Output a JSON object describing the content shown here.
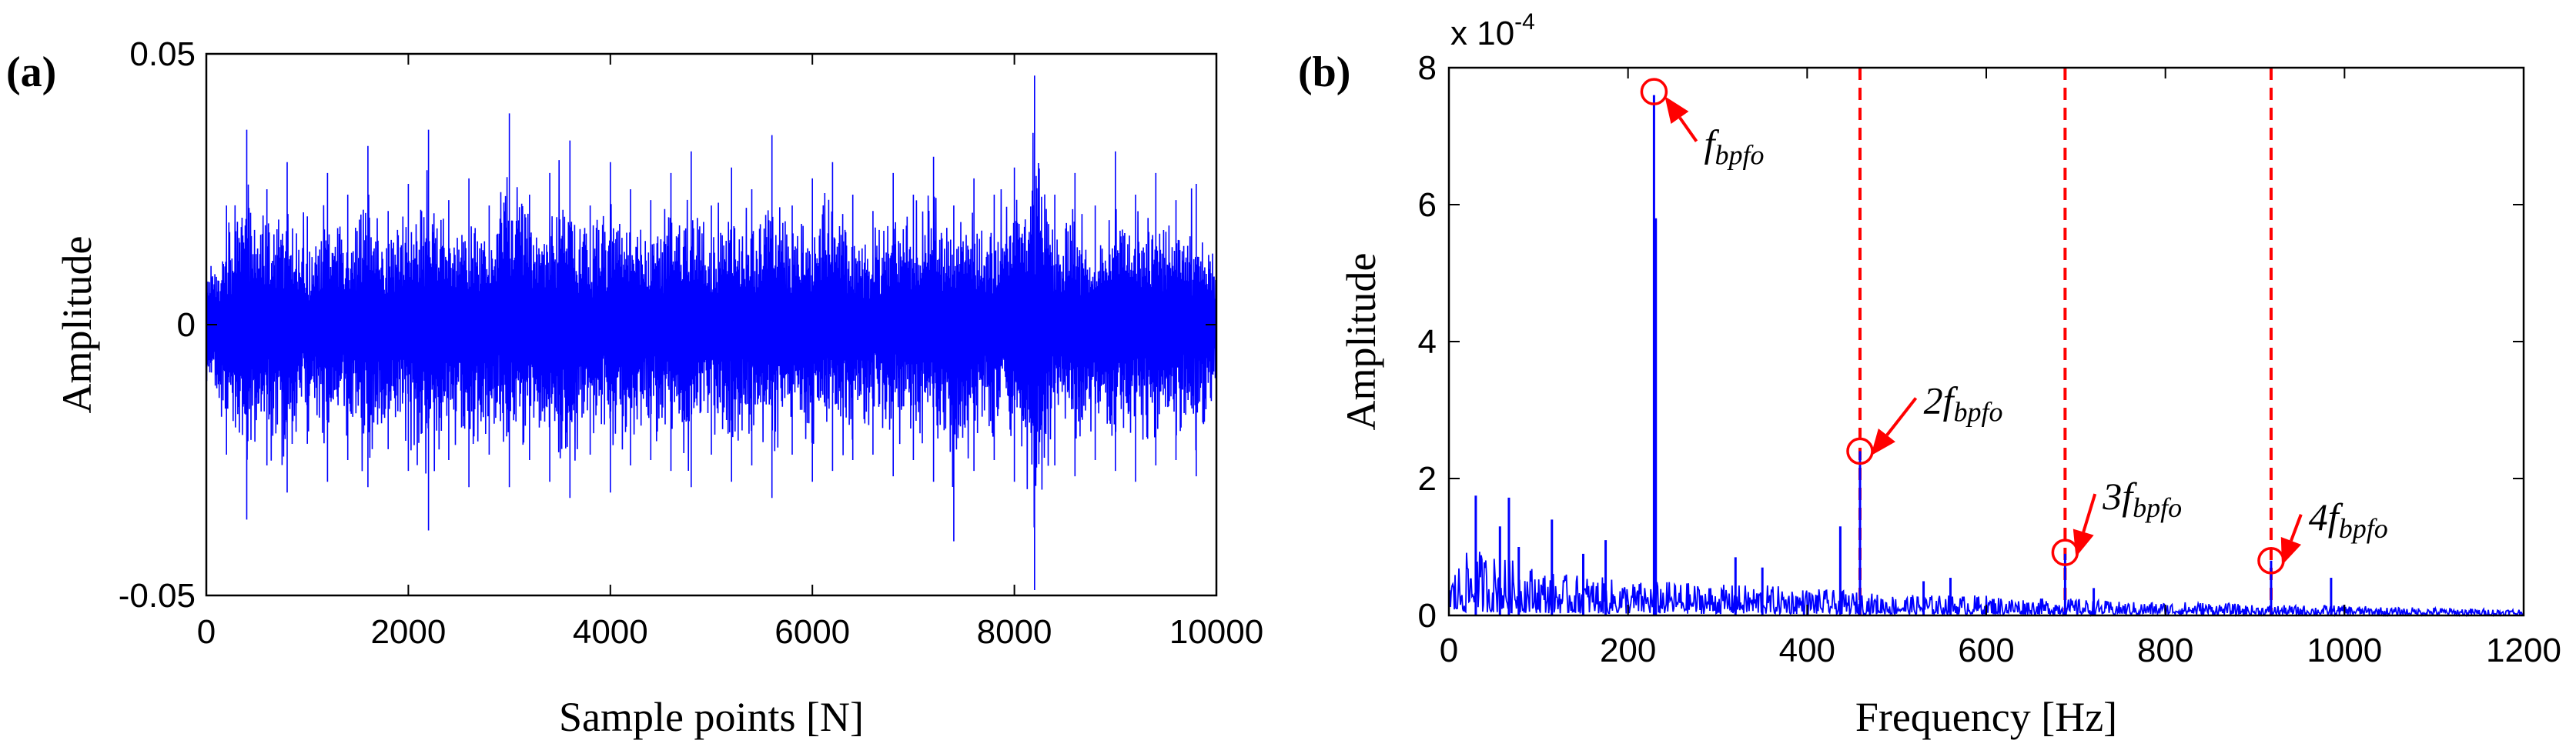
{
  "chart_data": [
    {
      "panel": "(a)",
      "type": "line",
      "xlabel": "Sample points [N]",
      "ylabel": "Amplitude",
      "xlim": [
        0,
        10000
      ],
      "ylim": [
        -0.05,
        0.05
      ],
      "xticks": [
        0,
        2000,
        4000,
        6000,
        8000,
        10000
      ],
      "yticks": [
        -0.05,
        0,
        0.05
      ],
      "ytick_labels": [
        "-0.05",
        "0",
        "0.05"
      ],
      "grid": false,
      "color": "#0000ff",
      "series": [
        {
          "x": [
            0,
            200,
            400,
            600,
            800,
            1000,
            1200,
            1400,
            1600,
            1800,
            2000,
            2200,
            2400,
            2600,
            2800,
            3000,
            3200,
            3400,
            3600,
            3800,
            4000,
            4200,
            4400,
            4600,
            4800,
            5000,
            5200,
            5400,
            5600,
            5800,
            6000,
            6200,
            6400,
            6600,
            6800,
            7000,
            7200,
            7400,
            7600,
            7800,
            8000,
            8200,
            8400,
            8600,
            8800,
            9000,
            9200,
            9400,
            9600,
            9800,
            10000
          ],
          "upper": [
            0.013,
            0.022,
            0.036,
            0.025,
            0.03,
            0.02,
            0.028,
            0.024,
            0.033,
            0.021,
            0.026,
            0.036,
            0.023,
            0.027,
            0.022,
            0.039,
            0.024,
            0.028,
            0.034,
            0.022,
            0.03,
            0.025,
            0.023,
            0.028,
            0.032,
            0.022,
            0.029,
            0.025,
            0.035,
            0.022,
            0.027,
            0.03,
            0.024,
            0.021,
            0.028,
            0.024,
            0.031,
            0.022,
            0.027,
            0.024,
            0.029,
            0.046,
            0.024,
            0.028,
            0.022,
            0.032,
            0.024,
            0.028,
            0.023,
            0.026,
            0.015
          ],
          "lower": [
            -0.015,
            -0.024,
            -0.036,
            -0.026,
            -0.031,
            -0.022,
            -0.029,
            -0.025,
            -0.03,
            -0.023,
            -0.027,
            -0.038,
            -0.025,
            -0.03,
            -0.024,
            -0.03,
            -0.025,
            -0.029,
            -0.032,
            -0.024,
            -0.031,
            -0.026,
            -0.025,
            -0.027,
            -0.03,
            -0.024,
            -0.029,
            -0.026,
            -0.032,
            -0.024,
            -0.029,
            -0.027,
            -0.025,
            -0.024,
            -0.028,
            -0.025,
            -0.029,
            -0.04,
            -0.027,
            -0.025,
            -0.029,
            -0.049,
            -0.026,
            -0.028,
            -0.025,
            -0.027,
            -0.029,
            -0.026,
            -0.025,
            -0.028,
            -0.016
          ]
        }
      ]
    },
    {
      "panel": "(b)",
      "type": "line",
      "xlabel": "Frequency [Hz]",
      "ylabel": "Amplitude",
      "exponent_label": "x 10",
      "exponent_power": "-4",
      "xlim": [
        0,
        1200
      ],
      "ylim": [
        0,
        8
      ],
      "xticks": [
        0,
        200,
        400,
        600,
        800,
        1000,
        1200
      ],
      "yticks": [
        0,
        2,
        4,
        6,
        8
      ],
      "grid": false,
      "color": "#0000ff",
      "spectrum_floor": {
        "x": [
          0,
          25,
          50,
          75,
          100,
          125,
          150,
          175,
          200,
          250,
          300,
          350,
          400,
          450,
          500,
          550,
          600,
          650,
          700,
          750,
          800,
          850,
          900,
          950,
          1000,
          1050,
          1100,
          1150,
          1200
        ],
        "envelope": [
          0.6,
          1.0,
          0.9,
          0.8,
          0.7,
          0.6,
          0.6,
          0.55,
          0.5,
          0.5,
          0.45,
          0.45,
          0.4,
          0.35,
          0.3,
          0.3,
          0.3,
          0.25,
          0.25,
          0.2,
          0.2,
          0.2,
          0.15,
          0.15,
          0.15,
          0.12,
          0.12,
          0.1,
          0.1
        ]
      },
      "peaks": [
        {
          "x": 30,
          "y": 1.75
        },
        {
          "x": 57,
          "y": 1.3
        },
        {
          "x": 67,
          "y": 1.72
        },
        {
          "x": 78,
          "y": 1.0
        },
        {
          "x": 115,
          "y": 1.4
        },
        {
          "x": 150,
          "y": 0.9
        },
        {
          "x": 175,
          "y": 1.1
        },
        {
          "x": 229,
          "y": 7.6
        },
        {
          "x": 231,
          "y": 5.8
        },
        {
          "x": 320,
          "y": 0.85
        },
        {
          "x": 350,
          "y": 0.7
        },
        {
          "x": 437,
          "y": 1.3
        },
        {
          "x": 459,
          "y": 2.4
        },
        {
          "x": 530,
          "y": 0.5
        },
        {
          "x": 560,
          "y": 0.55
        },
        {
          "x": 688,
          "y": 0.9
        },
        {
          "x": 720,
          "y": 0.4
        },
        {
          "x": 918,
          "y": 0.8
        },
        {
          "x": 985,
          "y": 0.55
        }
      ],
      "reference_lines": {
        "color": "#ff0000",
        "style": "dashed",
        "x": [
          459,
          688,
          918
        ]
      },
      "markers": [
        {
          "x": 229,
          "y": 7.65
        },
        {
          "x": 459,
          "y": 2.4
        },
        {
          "x": 688,
          "y": 0.92
        },
        {
          "x": 918,
          "y": 0.8
        }
      ],
      "annotations": [
        {
          "prefix": "",
          "base": "f",
          "sub": "bpfo",
          "target_x": 229,
          "target_y": 7.65,
          "text_x": 285,
          "text_y": 6.7
        },
        {
          "prefix": "2",
          "base": "f",
          "sub": "bpfo",
          "target_x": 459,
          "target_y": 2.4,
          "text_x": 530,
          "text_y": 2.95
        },
        {
          "prefix": "3",
          "base": "f",
          "sub": "bpfo",
          "target_x": 688,
          "target_y": 0.92,
          "text_x": 730,
          "text_y": 1.55
        },
        {
          "prefix": "4",
          "base": "f",
          "sub": "bpfo",
          "target_x": 918,
          "target_y": 0.8,
          "text_x": 960,
          "text_y": 1.25
        }
      ],
      "marker_color": "#ff0000",
      "arrow_color": "#ff0000"
    }
  ]
}
